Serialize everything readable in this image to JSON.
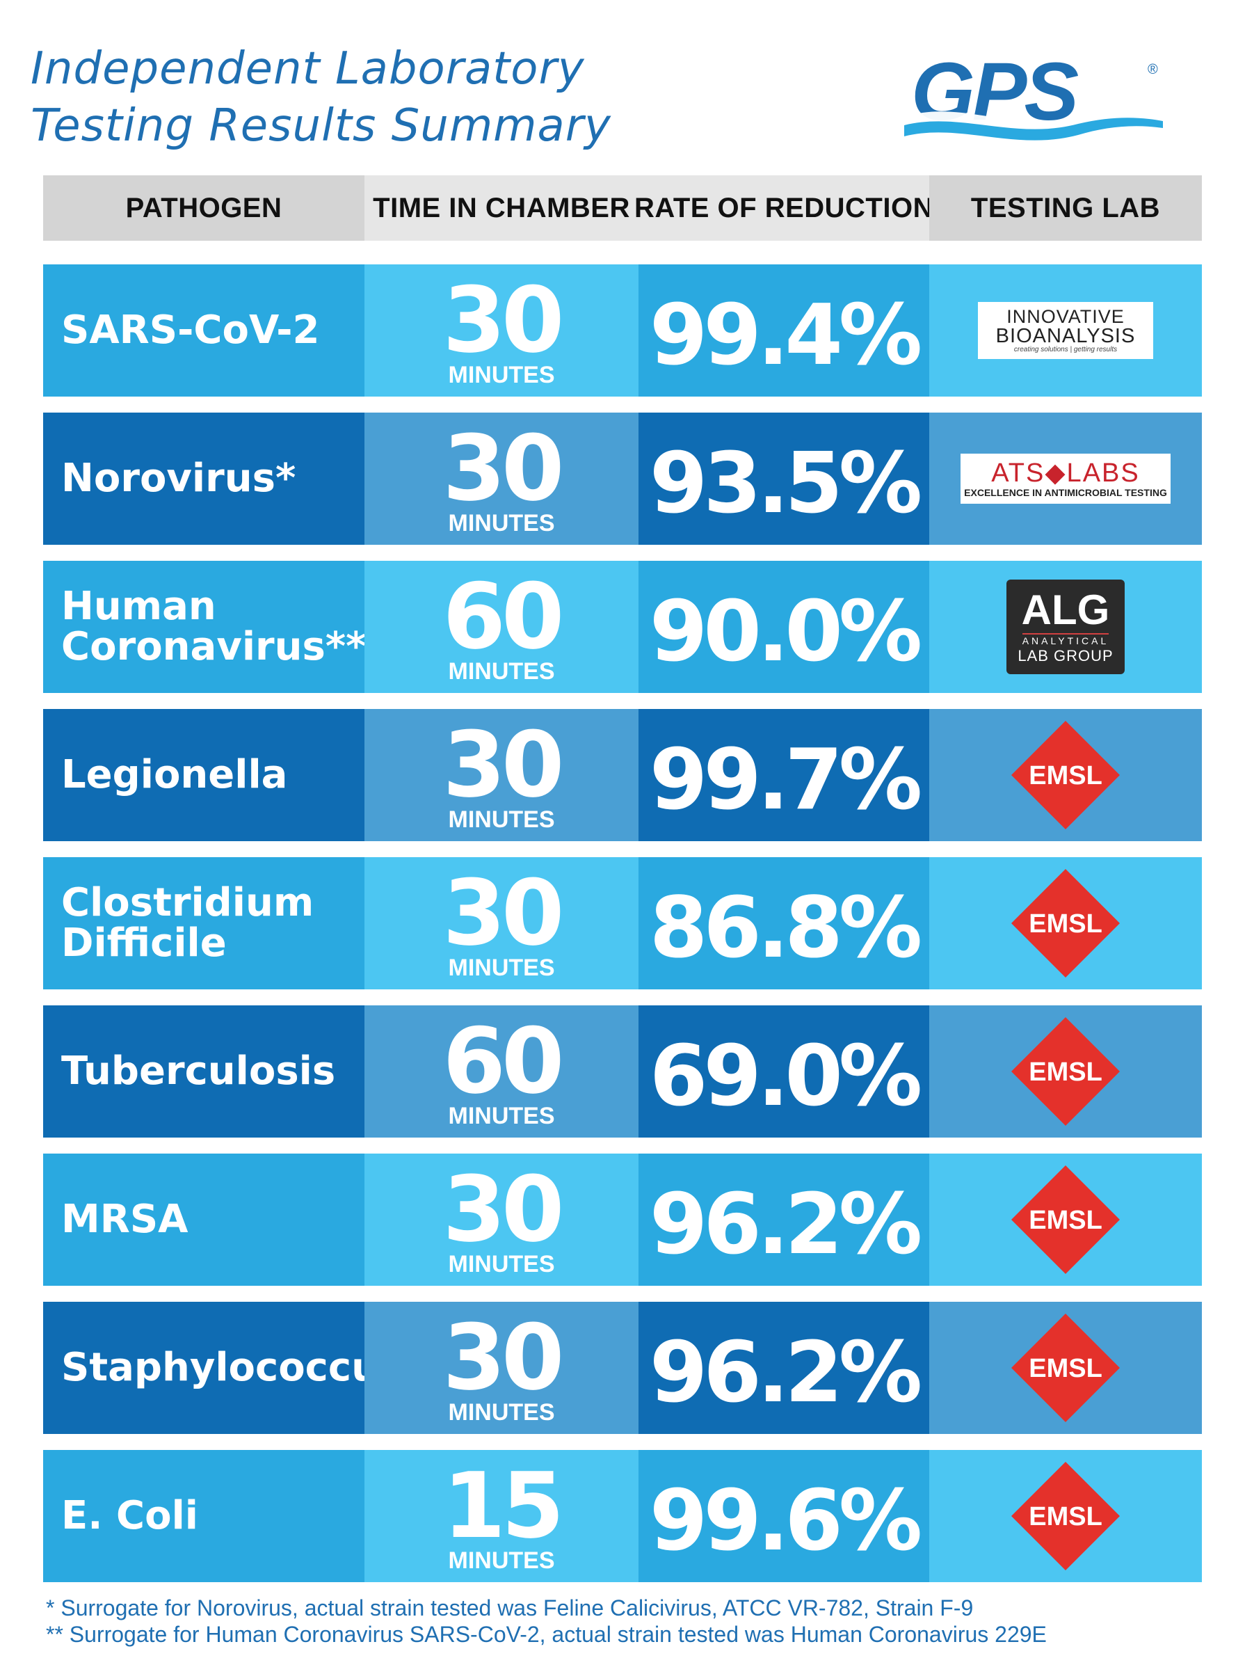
{
  "title": {
    "line1": "Independent Laboratory",
    "line2": "Testing Results Summary"
  },
  "brand": {
    "name": "GPS",
    "registered": "®",
    "color": "#1f6fb2"
  },
  "table": {
    "headers": [
      "PATHOGEN",
      "TIME IN CHAMBER",
      "RATE OF REDUCTION",
      "TESTING LAB"
    ],
    "rows": [
      {
        "pathogen": "SARS-CoV-2",
        "time": "30",
        "unit": "MINUTES",
        "rate": "99.4%",
        "lab": "ib",
        "shade": "light"
      },
      {
        "pathogen": "Norovirus*",
        "time": "30",
        "unit": "MINUTES",
        "rate": "93.5%",
        "lab": "ats",
        "shade": "dark"
      },
      {
        "pathogen": "Human\nCoronavirus**",
        "time": "60",
        "unit": "MINUTES",
        "rate": "90.0%",
        "lab": "alg",
        "shade": "light"
      },
      {
        "pathogen": "Legionella",
        "time": "30",
        "unit": "MINUTES",
        "rate": "99.7%",
        "lab": "emsl",
        "shade": "dark"
      },
      {
        "pathogen": "Clostridium\nDifficile",
        "time": "30",
        "unit": "MINUTES",
        "rate": "86.8%",
        "lab": "emsl",
        "shade": "light"
      },
      {
        "pathogen": "Tuberculosis",
        "time": "60",
        "unit": "MINUTES",
        "rate": "69.0%",
        "lab": "emsl",
        "shade": "dark"
      },
      {
        "pathogen": "MRSA",
        "time": "30",
        "unit": "MINUTES",
        "rate": "96.2%",
        "lab": "emsl",
        "shade": "light"
      },
      {
        "pathogen": "Staphylococcus",
        "time": "30",
        "unit": "MINUTES",
        "rate": "96.2%",
        "lab": "emsl",
        "shade": "dark"
      },
      {
        "pathogen": "E. Coli",
        "time": "15",
        "unit": "MINUTES",
        "rate": "99.6%",
        "lab": "emsl",
        "shade": "light"
      }
    ]
  },
  "labs": {
    "ib": {
      "line1": "INNOVATIVE",
      "line2": "BIOANALYSIS",
      "tagline": "creating solutions | getting results"
    },
    "ats": {
      "line1": "ATS◆LABS",
      "tagline": "EXCELLENCE IN ANTIMICROBIAL TESTING"
    },
    "alg": {
      "line1": "ALG",
      "line2": "ANALYTICAL",
      "line3": "LAB GROUP"
    },
    "emsl": {
      "name": "EMSL",
      "color": "#e4312b"
    }
  },
  "footnotes": [
    "* Surrogate for Norovirus, actual strain tested was Feline Calicivirus, ATCC VR-782, Strain F-9",
    "** Surrogate for Human Coronavirus SARS-CoV-2, actual strain tested was Human Coronavirus 229E"
  ]
}
